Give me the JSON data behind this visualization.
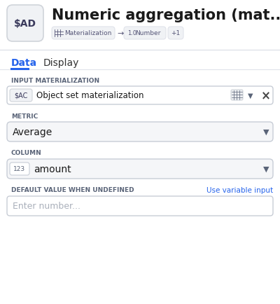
{
  "bg_color": "#ffffff",
  "title": "Numeric aggregation (mat...",
  "title_fontsize": 15,
  "title_fontweight": "bold",
  "title_color": "#1a1a1a",
  "ad_label": "$AD",
  "ad_box_color": "#f0f2f5",
  "ad_box_border": "#d0d4da",
  "ad_text_color": "#3a3a5c",
  "breadcrumb_color": "#555577",
  "breadcrumb_bg": "#f0f2f5",
  "tab_data": "Data",
  "tab_display": "Display",
  "tab_active_color": "#2563eb",
  "tab_inactive_color": "#333333",
  "section1_label": "INPUT MATERIALIZATION",
  "section1_label_color": "#5a6478",
  "input_mat_tag": "$AC",
  "input_mat_text": "Object set materialization",
  "input_mat_box_bg": "#ffffff",
  "input_mat_box_border": "#c8cdd6",
  "section2_label": "METRIC",
  "section2_label_color": "#5a6478",
  "metric_value": "Average",
  "metric_box_bg": "#f5f6f8",
  "metric_box_border": "#c8cdd6",
  "section3_label": "COLUMN",
  "section3_label_color": "#5a6478",
  "column_tag": "123",
  "column_value": "amount",
  "column_box_bg": "#f5f6f8",
  "column_box_border": "#c8cdd6",
  "section4_label": "DEFAULT VALUE WHEN UNDEFINED",
  "section4_label_color": "#5a6478",
  "section4_link": "Use variable input",
  "section4_link_color": "#2563eb",
  "placeholder_text": "Enter number...",
  "placeholder_color": "#aab0bb",
  "default_box_bg": "#ffffff",
  "default_box_border": "#c8cdd6",
  "divider_color": "#e0e3ea",
  "icon_color": "#5a6478",
  "close_color": "#444444",
  "arrow_right": "→",
  "dropdown_arrow": "▼",
  "close_x": "×"
}
